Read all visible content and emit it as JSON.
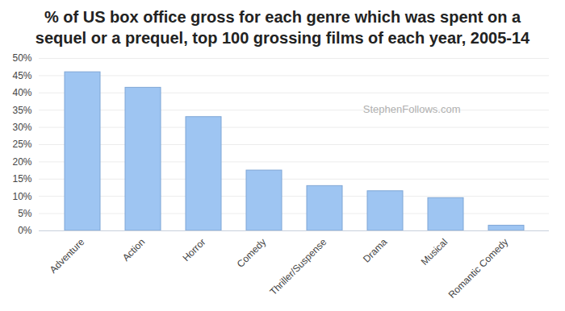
{
  "chart_data": {
    "type": "bar",
    "title": "% of US box office gross for each genre which was spent on a sequel or a prequel, top 100 grossing films of each year, 2005-14",
    "annotation": "StephenFollows.com",
    "categories": [
      "Adventure",
      "Action",
      "Horror",
      "Comedy",
      "Thriller/Suspense",
      "Drama",
      "Musical",
      "Romantic Comedy"
    ],
    "values": [
      46,
      41.5,
      33,
      17.5,
      13,
      11.5,
      9.5,
      1.5
    ],
    "color": "#9ec5f2",
    "ylim": [
      0,
      50
    ],
    "yticks": [
      {
        "value": 0,
        "label": "0%"
      },
      {
        "value": 5,
        "label": "5%"
      },
      {
        "value": 10,
        "label": "10%"
      },
      {
        "value": 15,
        "label": "15%"
      },
      {
        "value": 20,
        "label": "20%"
      },
      {
        "value": 25,
        "label": "25%"
      },
      {
        "value": 30,
        "label": "30%"
      },
      {
        "value": 35,
        "label": "35%"
      },
      {
        "value": 40,
        "label": "40%"
      },
      {
        "value": 45,
        "label": "45%"
      },
      {
        "value": 50,
        "label": "50%"
      }
    ],
    "grid": true
  }
}
